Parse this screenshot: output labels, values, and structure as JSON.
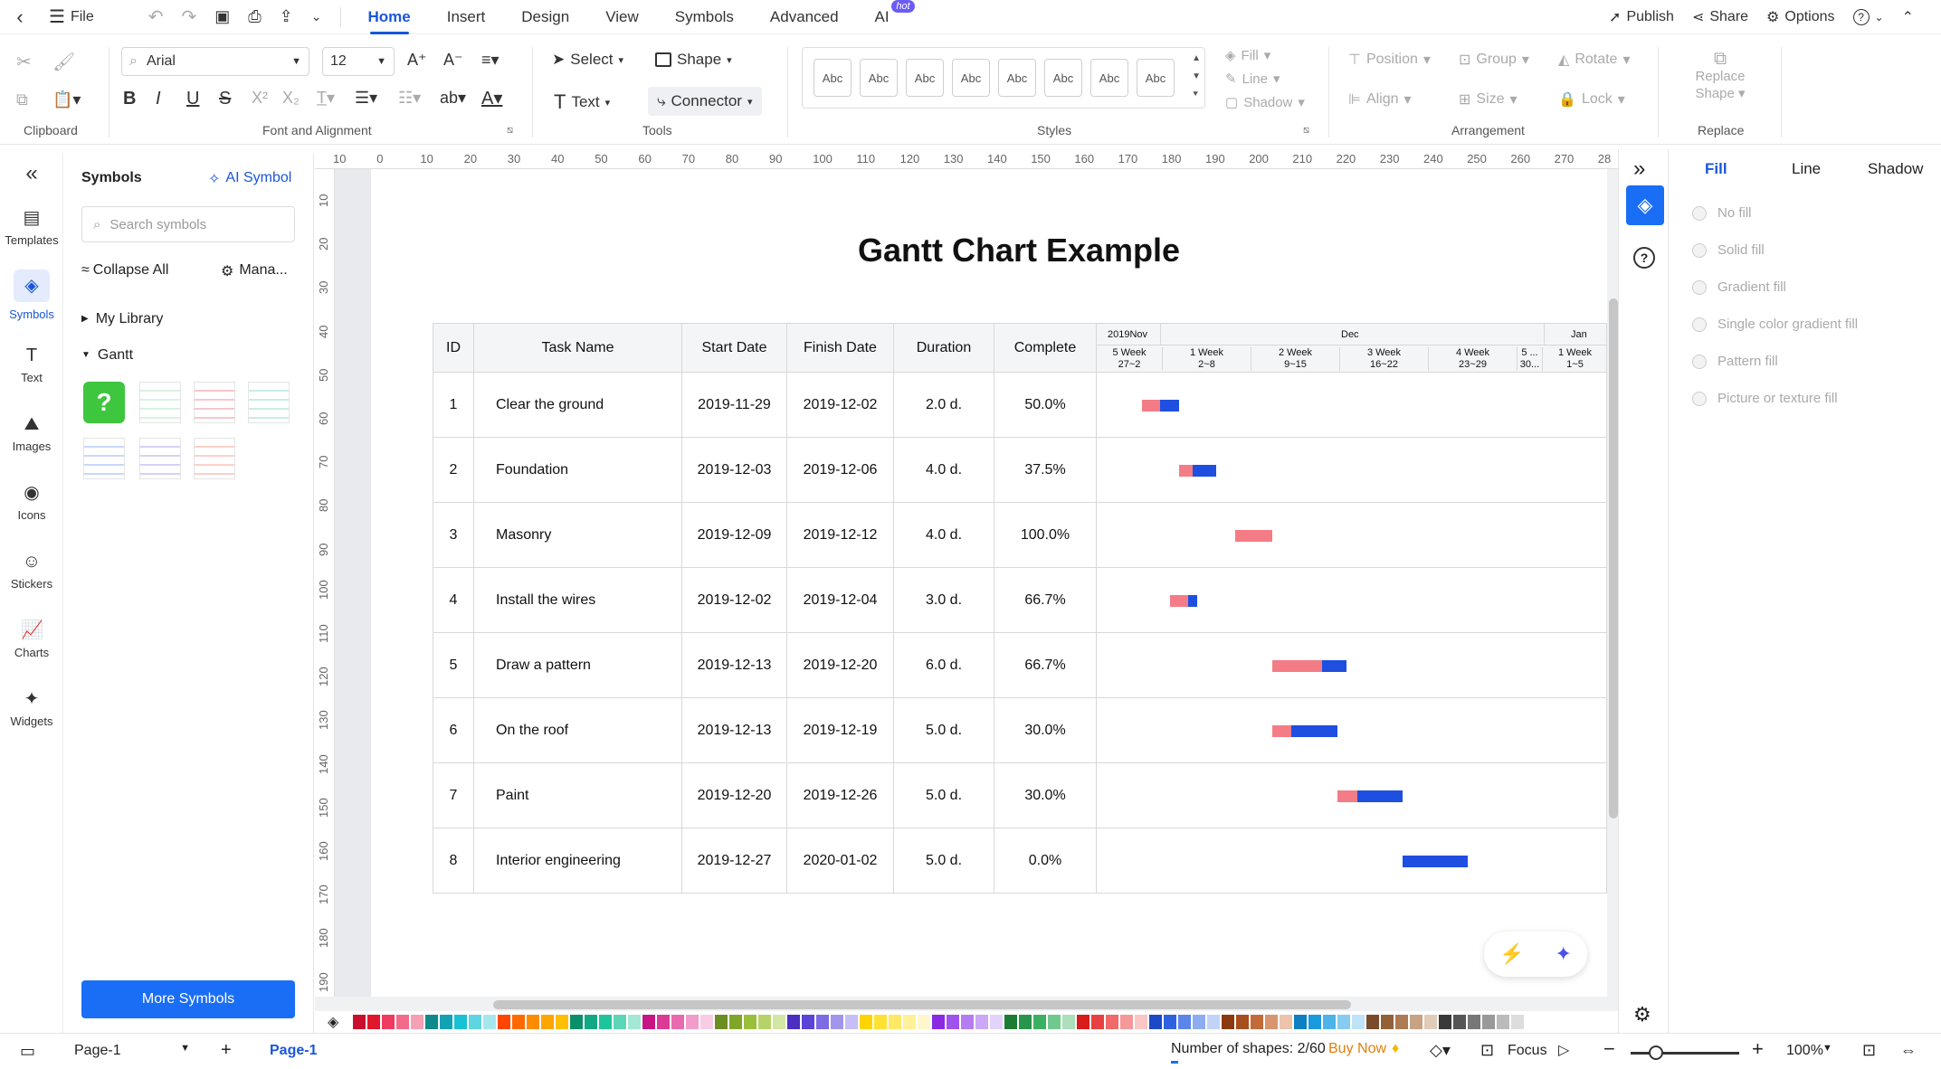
{
  "menubar": {
    "file": "File",
    "tabs": [
      "Home",
      "Insert",
      "Design",
      "View",
      "Symbols",
      "Advanced",
      "AI"
    ],
    "hot_badge": "hot",
    "publish": "Publish",
    "share": "Share",
    "options": "Options",
    "help": "?"
  },
  "ribbon": {
    "font_name": "Arial",
    "font_size": "12",
    "select": "Select",
    "shape": "Shape",
    "text": "Text",
    "connector": "Connector",
    "style_sample": "Abc",
    "fill": "Fill",
    "line": "Line",
    "shadow": "Shadow",
    "position": "Position",
    "group": "Group",
    "rotate": "Rotate",
    "align": "Align",
    "size": "Size",
    "lock": "Lock",
    "replace_shape": "Replace Shape",
    "groups": {
      "clipboard": "Clipboard",
      "font": "Font and Alignment",
      "tools": "Tools",
      "styles": "Styles",
      "arrangement": "Arrangement",
      "replace": "Replace"
    }
  },
  "leftnav": [
    "Templates",
    "Symbols",
    "Text",
    "Images",
    "Icons",
    "Stickers",
    "Charts",
    "Widgets"
  ],
  "symbols_panel": {
    "title": "Symbols",
    "ai_symbol": "AI Symbol",
    "search_placeholder": "Search symbols",
    "collapse_all": "Collapse All",
    "manage": "Mana...",
    "my_library": "My Library",
    "gantt": "Gantt",
    "more_symbols": "More Symbols"
  },
  "rulers": {
    "h": [
      "10",
      "0",
      "10",
      "20",
      "30",
      "40",
      "50",
      "60",
      "70",
      "80",
      "90",
      "100",
      "110",
      "120",
      "130",
      "140",
      "150",
      "160",
      "170",
      "180",
      "190",
      "200",
      "210",
      "220",
      "230",
      "240",
      "250",
      "260",
      "270",
      "28"
    ],
    "v": [
      "10",
      "20",
      "30",
      "40",
      "50",
      "60",
      "70",
      "80",
      "90",
      "100",
      "110",
      "120",
      "130",
      "140",
      "150",
      "160",
      "170",
      "180",
      "190"
    ]
  },
  "document": {
    "title": "Gantt Chart Example",
    "headers": [
      "ID",
      "Task Name",
      "Start Date",
      "Finish Date",
      "Duration",
      "Complete"
    ],
    "months": [
      "2019Nov",
      "Dec",
      "Jan"
    ],
    "weeks": [
      {
        "w": "5 Week",
        "d": "27~2"
      },
      {
        "w": "1 Week",
        "d": "2~8"
      },
      {
        "w": "2 Week",
        "d": "9~15"
      },
      {
        "w": "3 Week",
        "d": "16~22"
      },
      {
        "w": "4 Week",
        "d": "23~29"
      },
      {
        "w": "5 ...",
        "d": "30..."
      },
      {
        "w": "1 Week",
        "d": "1~5"
      }
    ],
    "tasks": [
      {
        "id": "1",
        "name": "Clear the ground",
        "start": "2019-11-29",
        "finish": "2019-12-02",
        "duration": "2.0 d.",
        "complete": "50.0%"
      },
      {
        "id": "2",
        "name": "Foundation",
        "start": "2019-12-03",
        "finish": "2019-12-06",
        "duration": "4.0 d.",
        "complete": "37.5%"
      },
      {
        "id": "3",
        "name": "Masonry",
        "start": "2019-12-09",
        "finish": "2019-12-12",
        "duration": "4.0 d.",
        "complete": "100.0%"
      },
      {
        "id": "4",
        "name": "Install the wires",
        "start": "2019-12-02",
        "finish": "2019-12-04",
        "duration": "3.0 d.",
        "complete": "66.7%"
      },
      {
        "id": "5",
        "name": "Draw a pattern",
        "start": "2019-12-13",
        "finish": "2019-12-20",
        "duration": "6.0 d.",
        "complete": "66.7%"
      },
      {
        "id": "6",
        "name": "On the roof",
        "start": "2019-12-13",
        "finish": "2019-12-19",
        "duration": "5.0 d.",
        "complete": "30.0%"
      },
      {
        "id": "7",
        "name": "Paint",
        "start": "2019-12-20",
        "finish": "2019-12-26",
        "duration": "5.0 d.",
        "complete": "30.0%"
      },
      {
        "id": "8",
        "name": "Interior engineering",
        "start": "2019-12-27",
        "finish": "2020-01-02",
        "duration": "5.0 d.",
        "complete": "0.0%"
      }
    ],
    "bar_colors": {
      "done": "#f47c86",
      "remaining": "#1f4fe0"
    }
  },
  "right_panel": {
    "tabs": [
      "Fill",
      "Line",
      "Shadow"
    ],
    "fill_options": [
      "No fill",
      "Solid fill",
      "Gradient fill",
      "Single color gradient fill",
      "Pattern fill",
      "Picture or texture fill"
    ]
  },
  "palette": [
    "#c8102e",
    "#e0162b",
    "#f03a5f",
    "#f26b8a",
    "#f5a0b4",
    "#0f8a8a",
    "#11a3b3",
    "#19c1d6",
    "#5fd4e2",
    "#a6e7ef",
    "#ff4500",
    "#ff6a00",
    "#ff8c00",
    "#ffa500",
    "#ffbf00",
    "#0b8f6b",
    "#12a884",
    "#1ec49b",
    "#5cd6b6",
    "#a3e8d4",
    "#c71585",
    "#db3a96",
    "#e86bb0",
    "#f19ccb",
    "#f8cde4",
    "#6b8e23",
    "#7fa62a",
    "#9abf3a",
    "#b6d36a",
    "#d3e6a3",
    "#4b2ec2",
    "#5c45d6",
    "#7d6be3",
    "#a196ec",
    "#c6bff5",
    "#ffd400",
    "#ffe033",
    "#ffe866",
    "#fff099",
    "#fff7cc",
    "#8a2be2",
    "#a052ed",
    "#b57cf2",
    "#cba7f7",
    "#e2d3fb",
    "#1e7b34",
    "#27964a",
    "#3bb062",
    "#72c98e",
    "#acdfba",
    "#d81b1b",
    "#e84040",
    "#f06a6a",
    "#f59898",
    "#fac6c6",
    "#1c49c7",
    "#2f62e0",
    "#5a86ea",
    "#8eadf1",
    "#c2d3f8",
    "#8b3a0f",
    "#a84d1c",
    "#c26a3a",
    "#d99470",
    "#ebc4ab",
    "#0e7fc1",
    "#1b9ae0",
    "#4db3ea",
    "#86cbf1",
    "#bfe3f8",
    "#7a4b2a",
    "#94603a",
    "#ad7b55",
    "#c8a284",
    "#e1cbb9",
    "#3a3a3a",
    "#555555",
    "#777777",
    "#999999",
    "#bbbbbb",
    "#dddddd"
  ],
  "statusbar": {
    "page_tab": "Page-1",
    "page_active": "Page-1",
    "shape_count": "Number of shapes: 2/60",
    "buy_now": "Buy Now",
    "focus": "Focus",
    "zoom": "100%"
  }
}
